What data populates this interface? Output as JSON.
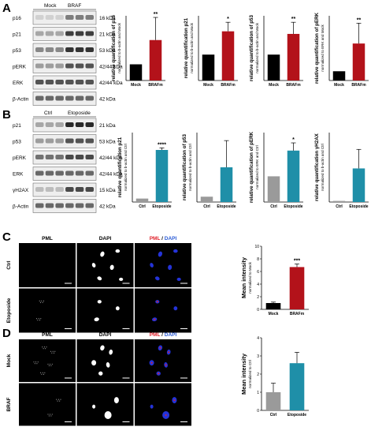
{
  "panels": {
    "A": {
      "letter": "A",
      "blot": {
        "lanes": [
          "Mock",
          "BRAF"
        ],
        "rows": [
          {
            "name": "p16",
            "kda": "16 kDa"
          },
          {
            "name": "p21",
            "kda": "21 kDa"
          },
          {
            "name": "p53",
            "kda": "53 kDa"
          },
          {
            "name": "pERK",
            "kda": "42/44 kDa"
          },
          {
            "name": "ERK",
            "kda": "42/44 kDa"
          },
          {
            "name": "β-Actin",
            "kda": "42 kDa"
          }
        ]
      }
    },
    "B": {
      "letter": "B",
      "blot": {
        "lanes": [
          "Ctrl",
          "Etoposide"
        ],
        "rows": [
          {
            "name": "p21",
            "kda": "21 kDa"
          },
          {
            "name": "p53",
            "kda": "53 kDa"
          },
          {
            "name": "pERK",
            "kda": "42/44 kDa"
          },
          {
            "name": "ERK",
            "kda": "42/44 kDa"
          },
          {
            "name": "γH2AX",
            "kda": "15 kDa"
          },
          {
            "name": "β-Actin",
            "kda": "42 kDa"
          }
        ]
      }
    },
    "C": {
      "letter": "C",
      "col_headers": [
        "PML",
        "DAPI",
        "PML / DAPI"
      ],
      "merge_parts": [
        "PML",
        " / ",
        "DAPI"
      ],
      "row_labels": [
        "Ctrl",
        "Etoposide"
      ]
    },
    "D": {
      "letter": "D",
      "col_headers": [
        "PML",
        "DAPI",
        "PML / DAPI"
      ],
      "merge_parts": [
        "PML",
        " / ",
        "DAPI"
      ],
      "row_labels": [
        "Mock",
        "BRAF"
      ]
    }
  },
  "colors": {
    "red_bar": "#b3121a",
    "teal_bar": "#1f8fa8",
    "black_bar": "#000000",
    "grey_bar": "#9a9a9a",
    "pml_red": "#e0202a",
    "dapi_blue": "#2a5bd6"
  },
  "chart_data": [
    {
      "id": "A1",
      "type": "bar",
      "ylabel": "relative quantification of p16",
      "ylabel2": "normalized to b-actin and Mock",
      "categories": [
        "Mock",
        "BRAFm"
      ],
      "values": [
        1.0,
        2.5
      ],
      "errors": [
        0,
        1.4
      ],
      "ylim": [
        0,
        4
      ],
      "yticks": [],
      "sig": "**",
      "colors": [
        "#000000",
        "#b3121a"
      ]
    },
    {
      "id": "A2",
      "type": "bar",
      "ylabel": "relative quantification p21",
      "ylabel2": "normalized to b-actin and Mock",
      "categories": [
        "Mock",
        "BRAFm"
      ],
      "values": [
        1.0,
        1.9
      ],
      "errors": [
        0,
        0.35
      ],
      "ylim": [
        0,
        2.5
      ],
      "yticks": [],
      "sig": "*",
      "colors": [
        "#000000",
        "#b3121a"
      ]
    },
    {
      "id": "A3",
      "type": "bar",
      "ylabel": "relative quantification of p53",
      "ylabel2": "normalized to b-actin and Mock",
      "categories": [
        "Mock",
        "BRAFm"
      ],
      "values": [
        1.0,
        1.8
      ],
      "errors": [
        0,
        0.45
      ],
      "ylim": [
        0,
        2.5
      ],
      "yticks": [],
      "sig": "**",
      "colors": [
        "#000000",
        "#b3121a"
      ]
    },
    {
      "id": "A4",
      "type": "bar",
      "ylabel": "relative quantification of pERK",
      "ylabel2": "normalized to ERK and Mock",
      "categories": [
        "Mock",
        "BRAFm"
      ],
      "values": [
        1.0,
        4.0
      ],
      "errors": [
        0,
        2.2
      ],
      "ylim": [
        0,
        7
      ],
      "yticks": [],
      "sig": "**",
      "colors": [
        "#000000",
        "#b3121a"
      ]
    },
    {
      "id": "B1",
      "type": "bar",
      "ylabel": "relative quantification p21",
      "ylabel2": "normalized to b-actin and Ctrl",
      "categories": [
        "Ctrl",
        "Etoposide"
      ],
      "values": [
        1.0,
        15.0
      ],
      "errors": [
        0,
        0.6
      ],
      "ylim": [
        0,
        20
      ],
      "yticks": [],
      "sig": "****",
      "colors": [
        "#9a9a9a",
        "#1f8fa8"
      ]
    },
    {
      "id": "B2",
      "type": "bar",
      "ylabel": "relative quantification of p53",
      "ylabel2": "normalized to b-actin and Ctrl",
      "categories": [
        "Ctrl",
        "Etoposide"
      ],
      "values": [
        1.0,
        6.5
      ],
      "errors": [
        0,
        5.0
      ],
      "ylim": [
        0,
        13
      ],
      "yticks": [],
      "sig": "",
      "colors": [
        "#9a9a9a",
        "#1f8fa8"
      ]
    },
    {
      "id": "B3",
      "type": "bar",
      "ylabel": "relative quantification of pERK",
      "ylabel2": "normalized to ERK and Ctrl",
      "categories": [
        "Ctrl",
        "Etoposide"
      ],
      "values": [
        1.0,
        2.0
      ],
      "errors": [
        0,
        0.3
      ],
      "ylim": [
        0,
        2.7
      ],
      "yticks": [],
      "sig": "*",
      "colors": [
        "#9a9a9a",
        "#1f8fa8"
      ]
    },
    {
      "id": "B4",
      "type": "bar",
      "ylabel": "relative quantification γH2AX",
      "ylabel2": "normalized to b-actin and Ctrl",
      "categories": [
        "Ctrl",
        "Etoposide"
      ],
      "values": [
        1.0,
        30.0
      ],
      "errors": [
        0,
        17.0
      ],
      "ylim": [
        0,
        62
      ],
      "yticks": [],
      "sig": "",
      "colors": [
        "#9a9a9a",
        "#1f8fa8"
      ]
    },
    {
      "id": "C",
      "type": "bar",
      "ylabel": "Mean intensity",
      "ylabel2": "normalized to Mock",
      "categories": [
        "Mock",
        "BRAFm"
      ],
      "values": [
        1.0,
        6.7
      ],
      "errors": [
        0.15,
        0.5
      ],
      "ylim": [
        0,
        10
      ],
      "yticks": [
        0,
        2,
        4,
        6,
        8,
        10
      ],
      "sig": "***",
      "colors": [
        "#000000",
        "#b3121a"
      ]
    },
    {
      "id": "D",
      "type": "bar",
      "ylabel": "Mean intensity",
      "ylabel2": "normalized to Ctrl",
      "categories": [
        "Ctrl",
        "Etoposide"
      ],
      "values": [
        1.0,
        2.6
      ],
      "errors": [
        0.5,
        0.6
      ],
      "ylim": [
        0,
        4
      ],
      "yticks": [
        0,
        1,
        2,
        3,
        4
      ],
      "sig": "",
      "colors": [
        "#9a9a9a",
        "#1f8fa8"
      ]
    }
  ]
}
